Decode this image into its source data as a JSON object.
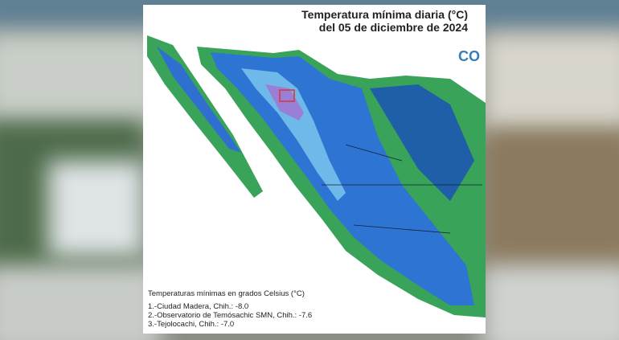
{
  "header": {
    "title_line1": "Temperatura mínima diaria (°C)",
    "title_line2": "del 05 de diciembre de 2024",
    "logo": "CO"
  },
  "legend": {
    "title": "Temperaturas mínimas en grados Celsius (°C)",
    "items": [
      "1.-Ciudad Madera, Chih.: -8.0",
      "2.-Observatorio de Temósachic SMN, Chih.: -7.6",
      "3.-Tejolocachi, Chih.: -7.0"
    ]
  }
}
